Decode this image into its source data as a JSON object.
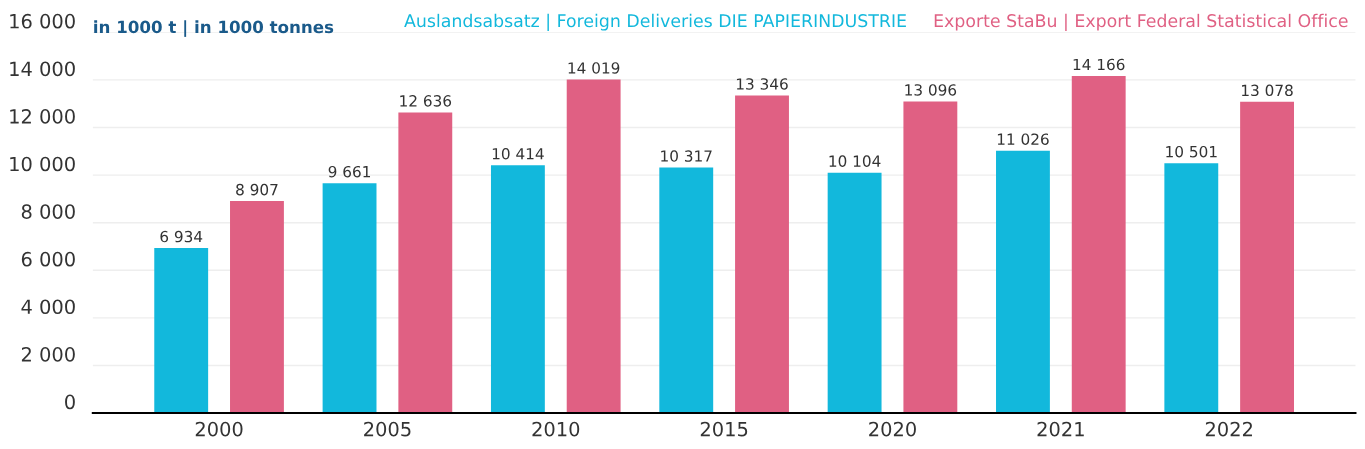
{
  "chart_data": {
    "type": "bar",
    "ylabel": "in 1000 t | in 1000 tonnes",
    "categories": [
      "2000",
      "2005",
      "2010",
      "2015",
      "2020",
      "2021",
      "2022"
    ],
    "series": [
      {
        "name": "Auslandsabsatz | Foreign Deliveries DIE PAPIERINDUSTRIE",
        "color": "#12b8dc",
        "values": [
          6934,
          9661,
          10414,
          10317,
          10104,
          11026,
          10501
        ],
        "value_labels": [
          "6 934",
          "9 661",
          "10 414",
          "10 317",
          "10 104",
          "11 026",
          "10 501"
        ]
      },
      {
        "name": "Exporte StaBu | Export Federal Statistical Office",
        "color": "#e06083",
        "values": [
          8907,
          12636,
          14019,
          13346,
          13096,
          14166,
          13078
        ],
        "value_labels": [
          "8 907",
          "12 636",
          "14 019",
          "13 346",
          "13 096",
          "14 166",
          "13 078"
        ]
      }
    ],
    "ylim": [
      0,
      16000
    ],
    "yticks": [
      {
        "value": 0,
        "label": "0"
      },
      {
        "value": 2000,
        "label": "2 000"
      },
      {
        "value": 4000,
        "label": "4 000"
      },
      {
        "value": 6000,
        "label": "6 000"
      },
      {
        "value": 8000,
        "label": "8 000"
      },
      {
        "value": 10000,
        "label": "10 000"
      },
      {
        "value": 12000,
        "label": "12 000"
      },
      {
        "value": 14000,
        "label": "14 000"
      },
      {
        "value": 16000,
        "label": "16 000"
      }
    ],
    "grid": "y",
    "legend": "top"
  }
}
